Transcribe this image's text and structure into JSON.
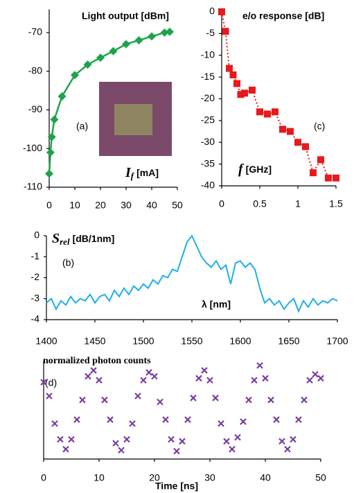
{
  "chart_data": [
    {
      "type": "scatter",
      "title": "Light output [dBm]",
      "annotation": "(a)",
      "xlabel": {
        "symbol": "I",
        "subscript": "f",
        "text": "[mA]"
      },
      "x": [
        0,
        0.5,
        1,
        2,
        5,
        10,
        15,
        20,
        25,
        30,
        35,
        40,
        45,
        47
      ],
      "values": [
        -106.5,
        -101,
        -97,
        -92.5,
        -86.5,
        -81,
        -78.3,
        -76.5,
        -74.8,
        -73,
        -72,
        -71,
        -70,
        -69.8
      ],
      "color": "#1ea34d",
      "marker": "diamond",
      "line_style": "solid",
      "xlim": [
        0,
        50
      ],
      "xticks": [
        0,
        10,
        20,
        30,
        40,
        50
      ],
      "ylim": [
        -110,
        -64
      ],
      "yticks": [
        -110,
        -100,
        -90,
        -80,
        -70
      ]
    },
    {
      "type": "scatter",
      "title": "e/o response [dB]",
      "annotation": "(c)",
      "xlabel": {
        "symbol": "f",
        "text": "[GHz]"
      },
      "x": [
        0,
        0.05,
        0.1,
        0.15,
        0.2,
        0.25,
        0.3,
        0.4,
        0.5,
        0.6,
        0.7,
        0.8,
        0.9,
        1.0,
        1.1,
        1.2,
        1.3,
        1.4,
        1.5
      ],
      "values": [
        0,
        -4.5,
        -13,
        -14.5,
        -16.5,
        -19,
        -18.7,
        -18,
        -23,
        -23.5,
        -23,
        -27,
        -27.5,
        -30,
        -31,
        -37,
        -34,
        -38.2,
        -38.2
      ],
      "color": "#e8191b",
      "marker": "square",
      "line_style": "dotted",
      "xlim": [
        0,
        1.5
      ],
      "xticks": [
        0,
        0.5,
        1,
        1.5
      ],
      "ylim": [
        -40,
        0
      ],
      "yticks": [
        0,
        -5,
        -10,
        -15,
        -20,
        -25,
        -30,
        -35,
        -40
      ]
    },
    {
      "type": "line",
      "annotation": "(b)",
      "ylabel": {
        "symbol": "S",
        "subscript": "rel",
        "text": "[dB/1nm]"
      },
      "xlabel": "λ [nm]",
      "x": [
        1400,
        1405,
        1410,
        1415,
        1420,
        1425,
        1430,
        1435,
        1440,
        1445,
        1450,
        1455,
        1460,
        1465,
        1470,
        1475,
        1480,
        1485,
        1490,
        1495,
        1500,
        1505,
        1510,
        1515,
        1520,
        1525,
        1530,
        1535,
        1540,
        1545,
        1550,
        1555,
        1560,
        1565,
        1570,
        1575,
        1580,
        1585,
        1590,
        1595,
        1600,
        1605,
        1610,
        1615,
        1620,
        1625,
        1630,
        1635,
        1640,
        1645,
        1650,
        1655,
        1660,
        1665,
        1670,
        1675,
        1680,
        1685,
        1690,
        1695,
        1700
      ],
      "values": [
        -3.2,
        -3.0,
        -3.5,
        -3.1,
        -3.3,
        -2.9,
        -3.2,
        -3.0,
        -3.1,
        -2.8,
        -3.2,
        -2.9,
        -2.8,
        -3.1,
        -2.6,
        -2.9,
        -2.5,
        -2.8,
        -2.4,
        -2.6,
        -2.3,
        -2.5,
        -2.1,
        -2.3,
        -1.9,
        -2.0,
        -1.6,
        -1.7,
        -1.0,
        -0.3,
        0.0,
        -0.5,
        -1.0,
        -1.3,
        -1.5,
        -1.2,
        -1.6,
        -1.4,
        -2.3,
        -1.3,
        -1.2,
        -1.5,
        -1.3,
        -1.6,
        -2.5,
        -3.2,
        -3.0,
        -3.3,
        -3.1,
        -3.5,
        -3.2,
        -3.0,
        -3.6,
        -3.1,
        -3.4,
        -3.0,
        -3.3,
        -3.1,
        -3.2,
        -3.0,
        -3.1
      ],
      "color": "#1eaee6",
      "xlim": [
        1400,
        1700
      ],
      "xticks": [
        1400,
        1450,
        1500,
        1550,
        1600,
        1650,
        1700
      ],
      "ylim": [
        -4,
        0
      ],
      "yticks": [
        0,
        -1,
        -2,
        -3,
        -4
      ]
    },
    {
      "type": "scatter",
      "title": "normalized photon counts",
      "annotation": "(d)",
      "xlabel": "Time [ns]",
      "x": [
        0,
        1,
        2,
        3,
        4,
        5,
        6,
        7,
        8,
        9,
        10,
        11,
        12,
        13,
        14,
        15,
        16,
        17,
        18,
        19,
        20,
        21,
        22,
        23,
        24,
        25,
        26,
        27,
        28,
        29,
        30,
        31,
        32,
        33,
        34,
        35,
        36,
        37,
        38,
        39,
        40,
        41,
        42,
        43,
        44,
        45,
        46,
        47,
        48,
        49,
        50
      ],
      "values": [
        0.78,
        0.64,
        0.36,
        0.2,
        0.1,
        0.2,
        0.4,
        0.6,
        0.84,
        0.9,
        0.8,
        0.6,
        0.4,
        0.16,
        0.09,
        0.2,
        0.36,
        0.64,
        0.8,
        0.88,
        0.84,
        0.58,
        0.4,
        0.2,
        0.08,
        0.18,
        0.4,
        0.62,
        0.82,
        0.9,
        0.8,
        0.62,
        0.36,
        0.18,
        0.1,
        0.22,
        0.38,
        0.6,
        0.8,
        0.95,
        0.82,
        0.6,
        0.4,
        0.18,
        0.1,
        0.2,
        0.4,
        0.6,
        0.8,
        0.86,
        0.82
      ],
      "color": "#7a3ea0",
      "marker": "x",
      "xlim": [
        0,
        50
      ],
      "xticks": [
        0,
        10,
        20,
        30,
        40,
        50
      ],
      "ylim": [
        0,
        1
      ]
    }
  ]
}
